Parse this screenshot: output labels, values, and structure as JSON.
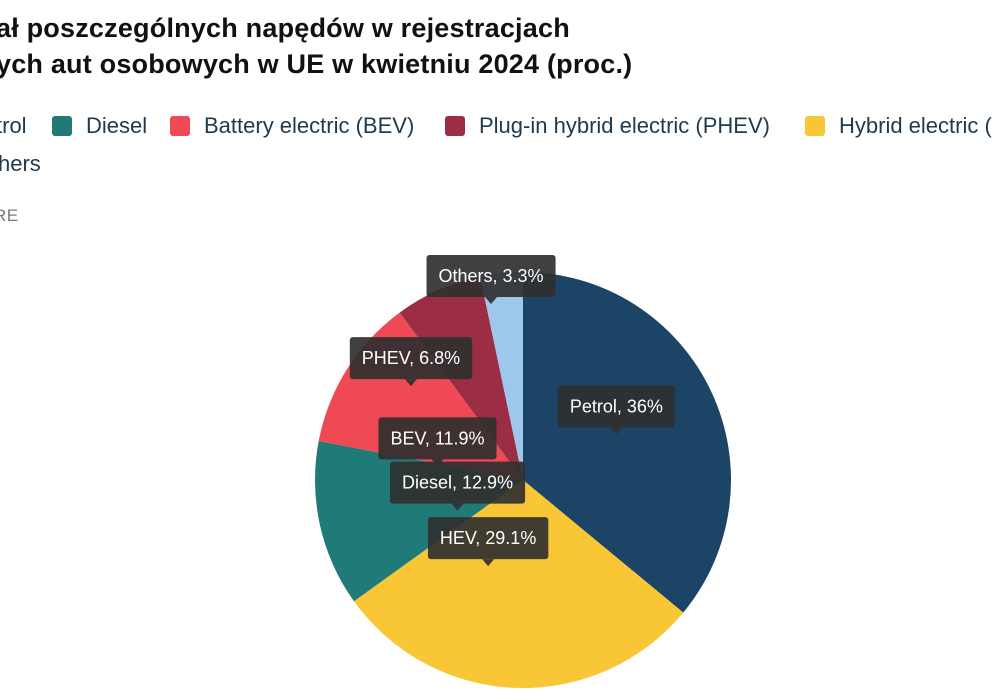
{
  "title_lines": [
    "ał poszczególnych napędów w rejestracjach",
    "ych aut osobowych w UE w kwietniu 2024 (proc.)"
  ],
  "legend": [
    {
      "label": "trol",
      "color": "#1c4466"
    },
    {
      "label": "Diesel",
      "color": "#1f7a78"
    },
    {
      "label": "Battery electric (BEV)",
      "color": "#ee4955"
    },
    {
      "label": "Plug-in hybrid electric (PHEV)",
      "color": "#9b2d44"
    },
    {
      "label": "Hybrid electric (",
      "color": "#f9c636"
    },
    {
      "label": "hers",
      "color": "#9dc8ec"
    }
  ],
  "source": "RE",
  "chart_data": {
    "type": "pie",
    "slices": [
      {
        "name": "Petrol",
        "value": 36,
        "label": "Petrol, 36%",
        "color": "#1c4466"
      },
      {
        "name": "HEV",
        "value": 29.1,
        "label": "HEV, 29.1%",
        "color": "#f9c636"
      },
      {
        "name": "Diesel",
        "value": 12.9,
        "label": "Diesel, 12.9%",
        "color": "#1f7a78"
      },
      {
        "name": "BEV",
        "value": 11.9,
        "label": "BEV, 11.9%",
        "color": "#ee4955"
      },
      {
        "name": "PHEV",
        "value": 6.8,
        "label": "PHEV, 6.8%",
        "color": "#9b2d44"
      },
      {
        "name": "Others",
        "value": 3.3,
        "label": "Others, 3.3%",
        "color": "#9dc8ec"
      }
    ]
  }
}
